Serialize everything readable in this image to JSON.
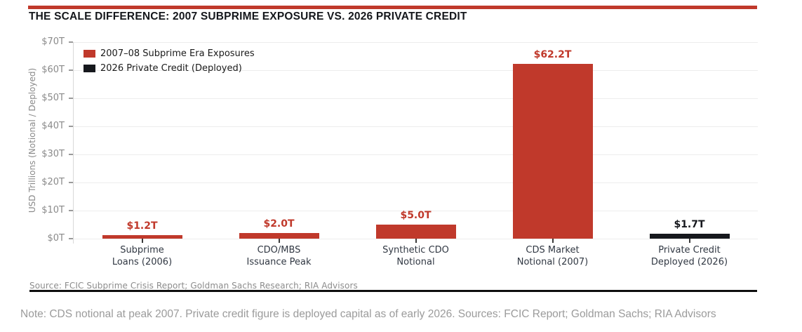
{
  "colors": {
    "accent_red": "#c0392b",
    "near_black": "#16181d",
    "gridline": "#ededed",
    "axis_text": "#8a8a8a",
    "category_text": "#313843"
  },
  "header": {
    "title": "THE SCALE DIFFERENCE: 2007 SUBPRIME EXPOSURE VS. 2026 PRIVATE CREDIT"
  },
  "chart_data": {
    "type": "bar",
    "title": "THE SCALE DIFFERENCE: 2007 SUBPRIME EXPOSURE VS. 2026 PRIVATE CREDIT",
    "xlabel": "",
    "ylabel": "USD Trillions (Notional / Deployed)",
    "ylim": [
      0,
      70
    ],
    "yticks": [
      0,
      10,
      20,
      30,
      40,
      50,
      60,
      70
    ],
    "ytick_labels": [
      "$0T",
      "$10T",
      "$20T",
      "$30T",
      "$40T",
      "$50T",
      "$60T",
      "$70T"
    ],
    "grid": true,
    "legend_position": "upper-left",
    "categories": [
      [
        "Subprime",
        "Loans (2006)"
      ],
      [
        "CDO/MBS",
        "Issuance Peak"
      ],
      [
        "Synthetic CDO",
        "Notional"
      ],
      [
        "CDS Market",
        "Notional (2007)"
      ],
      [
        "Private Credit",
        "Deployed (2026)"
      ]
    ],
    "values": [
      1.2,
      2.0,
      5.0,
      62.2,
      1.7
    ],
    "bar_labels": [
      "$1.2T",
      "$2.0T",
      "$5.0T",
      "$62.2T",
      "$1.7T"
    ],
    "bar_colors": [
      "#c0392b",
      "#c0392b",
      "#c0392b",
      "#c0392b",
      "#16181d"
    ],
    "legend": [
      {
        "label": "2007–08 Subprime Era Exposures",
        "color": "#c0392b"
      },
      {
        "label": "2026 Private Credit (Deployed)",
        "color": "#16181d"
      }
    ]
  },
  "footer": {
    "source": "Source: FCIC Subprime Crisis Report; Goldman Sachs Research; RIA Advisors",
    "note": "Note: CDS notional at peak 2007. Private credit figure is deployed capital as of early 2026. Sources: FCIC Report; Goldman Sachs; RIA Advisors"
  }
}
